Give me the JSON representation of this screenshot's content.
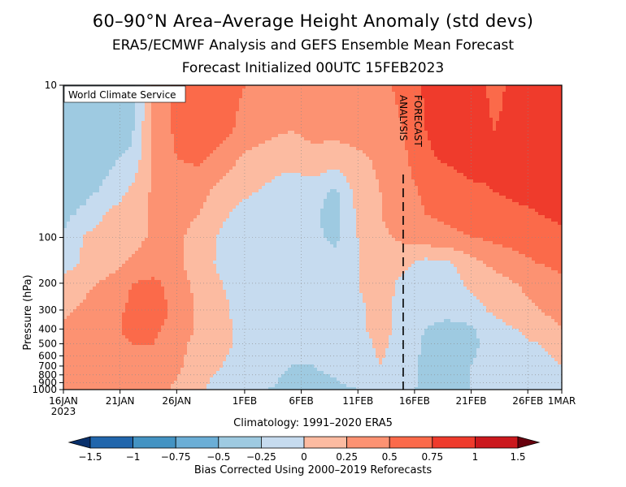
{
  "chart_data": {
    "type": "heatmap",
    "title": "60–90°N Area–Average Height Anomaly (std devs)",
    "subtitle": "ERA5/ECMWF Analysis and GEFS Ensemble Mean Forecast",
    "subtitle2": "Forecast Initialized 00UTC 15FEB2023",
    "watermark": "World Climate Service",
    "ylabel": "Pressure (hPa)",
    "xlabel": "Climatology: 1991–2020 ERA5",
    "colorbar_label": "Bias Corrected Using 2000–2019 Reforecasts",
    "analysis_label": "ANALYSIS",
    "forecast_label": "FORECAST",
    "divider_day": 30,
    "xlim_days": [
      0,
      44
    ],
    "x_ticks": [
      {
        "day": 0,
        "label": "16JAN",
        "sub": "2023"
      },
      {
        "day": 5,
        "label": "21JAN"
      },
      {
        "day": 10,
        "label": "26JAN"
      },
      {
        "day": 16,
        "label": "1FEB"
      },
      {
        "day": 21,
        "label": "6FEB"
      },
      {
        "day": 26,
        "label": "11FEB"
      },
      {
        "day": 31,
        "label": "16FEB"
      },
      {
        "day": 36,
        "label": "21FEB"
      },
      {
        "day": 41,
        "label": "26FEB"
      },
      {
        "day": 44,
        "label": "1MAR"
      }
    ],
    "y_ticks": [
      10,
      100,
      200,
      300,
      400,
      500,
      600,
      700,
      800,
      900,
      1000
    ],
    "levels": [
      -1.5,
      -1,
      -0.75,
      -0.5,
      -0.25,
      0,
      0.25,
      0.5,
      0.75,
      1,
      1.5
    ],
    "level_labels": [
      "−1.5",
      "−1",
      "−0.75",
      "−0.5",
      "−0.25",
      "0",
      "0.25",
      "0.5",
      "0.75",
      "1",
      "1.5"
    ],
    "colors": [
      "#08306b",
      "#2166ac",
      "#4393c3",
      "#6baed6",
      "#9ecae1",
      "#c6dbef",
      "#fcbba1",
      "#fc9272",
      "#fb6a4a",
      "#ef3b2c",
      "#cb181d",
      "#67000d"
    ],
    "days": [
      0,
      2,
      4,
      6,
      8,
      10,
      12,
      14,
      16,
      18,
      20,
      22,
      24,
      26,
      28,
      30,
      32,
      34,
      36,
      38,
      40,
      42,
      44
    ],
    "pressures": [
      10,
      20,
      30,
      50,
      70,
      100,
      150,
      200,
      300,
      400,
      500,
      700,
      850,
      1000
    ],
    "values": [
      [
        -0.4,
        -0.4,
        -0.45,
        -0.4,
        0.3,
        0.6,
        0.7,
        0.65,
        0.5,
        0.45,
        0.4,
        0.35,
        0.35,
        0.4,
        0.45,
        0.55,
        0.8,
        0.95,
        0.85,
        0.7,
        0.8,
        0.9,
        0.95
      ],
      [
        -0.4,
        -0.4,
        -0.4,
        -0.3,
        0.3,
        0.55,
        0.65,
        0.6,
        0.4,
        0.3,
        0.25,
        0.3,
        0.3,
        0.35,
        0.4,
        0.5,
        0.75,
        0.9,
        0.85,
        0.75,
        0.8,
        0.85,
        0.9
      ],
      [
        -0.35,
        -0.35,
        -0.3,
        -0.2,
        0.3,
        0.5,
        0.55,
        0.4,
        0.2,
        0.15,
        0.1,
        0.2,
        0.15,
        0.2,
        0.3,
        0.45,
        0.7,
        0.8,
        0.85,
        0.8,
        0.8,
        0.8,
        0.85
      ],
      [
        -0.35,
        -0.3,
        -0.2,
        0.05,
        0.3,
        0.4,
        0.35,
        0.15,
        0.05,
        -0.05,
        -0.15,
        -0.15,
        -0.3,
        0.1,
        0.25,
        0.4,
        0.55,
        0.6,
        0.7,
        0.75,
        0.8,
        0.8,
        0.85
      ],
      [
        -0.3,
        -0.2,
        0.05,
        0.15,
        0.3,
        0.35,
        0.25,
        0.05,
        -0.1,
        -0.15,
        -0.2,
        -0.2,
        -0.35,
        0.05,
        0.25,
        0.35,
        0.5,
        0.55,
        0.6,
        0.65,
        0.7,
        0.75,
        0.8
      ],
      [
        -0.25,
        0.05,
        0.1,
        0.15,
        0.3,
        0.3,
        0.15,
        -0.05,
        -0.15,
        -0.2,
        -0.25,
        -0.2,
        -0.3,
        0.0,
        0.2,
        0.3,
        0.4,
        0.45,
        0.5,
        0.55,
        0.6,
        0.65,
        0.7
      ],
      [
        -0.1,
        0.05,
        0.15,
        0.3,
        0.4,
        0.3,
        0.1,
        -0.05,
        -0.15,
        -0.2,
        -0.2,
        -0.15,
        -0.15,
        0.0,
        0.15,
        0.05,
        -0.1,
        -0.05,
        0.15,
        0.3,
        0.4,
        0.5,
        0.55
      ],
      [
        0.1,
        0.2,
        0.3,
        0.5,
        0.55,
        0.4,
        0.15,
        0.0,
        -0.1,
        -0.15,
        -0.15,
        -0.15,
        -0.1,
        0.0,
        0.1,
        -0.05,
        -0.15,
        -0.1,
        0.05,
        0.15,
        0.25,
        0.35,
        0.45
      ],
      [
        0.2,
        0.3,
        0.4,
        0.55,
        0.6,
        0.45,
        0.2,
        0.05,
        -0.1,
        -0.15,
        -0.15,
        -0.15,
        -0.1,
        -0.05,
        0.1,
        -0.1,
        -0.2,
        -0.2,
        -0.1,
        0.05,
        0.15,
        0.25,
        0.35
      ],
      [
        0.3,
        0.35,
        0.45,
        0.55,
        0.55,
        0.4,
        0.2,
        0.05,
        -0.05,
        -0.1,
        -0.15,
        -0.15,
        -0.1,
        -0.05,
        0.1,
        -0.1,
        -0.25,
        -0.3,
        -0.3,
        -0.1,
        0.0,
        0.1,
        0.25
      ],
      [
        0.35,
        0.4,
        0.45,
        0.5,
        0.5,
        0.35,
        0.15,
        0.05,
        -0.05,
        -0.1,
        -0.15,
        -0.2,
        -0.15,
        -0.1,
        0.05,
        -0.1,
        -0.3,
        -0.3,
        -0.3,
        -0.15,
        -0.05,
        0.0,
        0.15
      ],
      [
        0.35,
        0.4,
        0.45,
        0.45,
        0.45,
        0.3,
        0.1,
        0.0,
        -0.1,
        -0.15,
        -0.25,
        -0.25,
        -0.2,
        -0.1,
        0.0,
        -0.15,
        -0.3,
        -0.3,
        -0.25,
        -0.15,
        -0.1,
        -0.1,
        0.0
      ],
      [
        0.45,
        0.4,
        0.4,
        0.4,
        0.4,
        0.25,
        0.05,
        -0.05,
        -0.15,
        -0.2,
        -0.3,
        -0.3,
        -0.25,
        -0.15,
        -0.05,
        -0.15,
        -0.3,
        -0.3,
        -0.25,
        -0.2,
        -0.15,
        -0.15,
        -0.1
      ],
      [
        0.5,
        0.45,
        0.4,
        0.35,
        0.35,
        0.2,
        0.05,
        -0.1,
        -0.2,
        -0.25,
        -0.3,
        -0.3,
        -0.3,
        -0.25,
        -0.1,
        -0.2,
        -0.3,
        -0.3,
        -0.25,
        -0.2,
        -0.2,
        -0.2,
        -0.15
      ]
    ]
  }
}
